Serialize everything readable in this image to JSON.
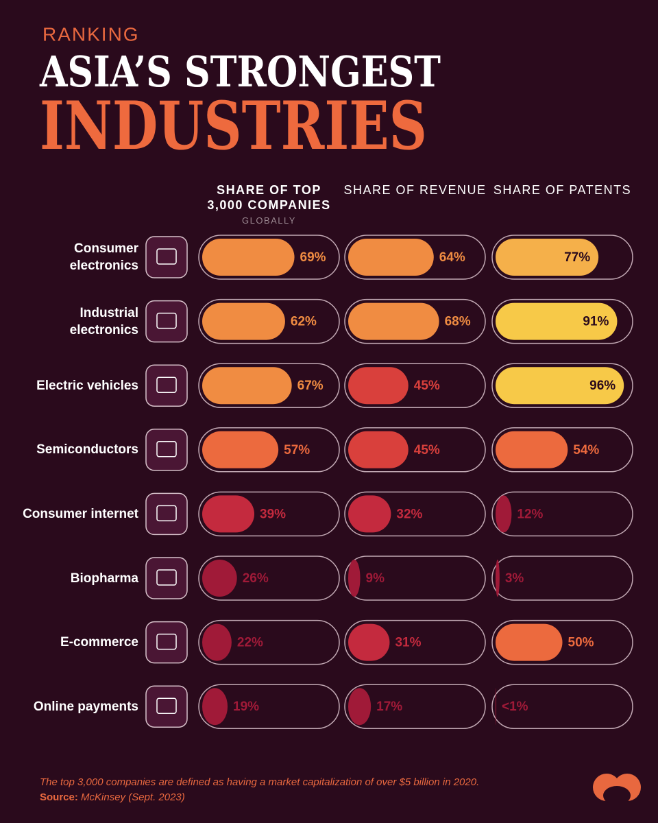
{
  "chart_data": {
    "type": "pill-bar",
    "kicker": "RANKING",
    "title": "ASIA’S STRONGEST",
    "title_highlight": "INDUSTRIES",
    "categories": [
      "Consumer electronics",
      "Industrial electronics",
      "Electric vehicles",
      "Semiconductors",
      "Consumer internet",
      "Biopharma",
      "E-commerce",
      "Online payments"
    ],
    "xlim": [
      0,
      100
    ],
    "series": [
      {
        "name": "SHARE OF TOP 3,000 COMPANIES",
        "note": "GLOBALLY",
        "values": [
          69,
          62,
          67,
          57,
          39,
          26,
          22,
          19
        ],
        "value_labels": [
          "69%",
          "62%",
          "67%",
          "57%",
          "39%",
          "26%",
          "22%",
          "19%"
        ],
        "colors": [
          "#f08c42",
          "#f08c42",
          "#f08c42",
          "#ec6a3e",
          "#c42a3e",
          "#a01a38",
          "#a01a38",
          "#a01a38"
        ]
      },
      {
        "name": "SHARE OF REVENUE",
        "values": [
          64,
          68,
          45,
          45,
          32,
          9,
          31,
          17
        ],
        "value_labels": [
          "64%",
          "68%",
          "45%",
          "45%",
          "32%",
          "9%",
          "31%",
          "17%"
        ],
        "colors": [
          "#f08c42",
          "#f08c42",
          "#d9403c",
          "#d9403c",
          "#c42a3e",
          "#a01a38",
          "#c42a3e",
          "#a01a38"
        ]
      },
      {
        "name": "SHARE OF PATENTS",
        "values": [
          77,
          91,
          96,
          54,
          12,
          3,
          50,
          0.5
        ],
        "value_labels": [
          "77%",
          "91%",
          "96%",
          "54%",
          "12%",
          "3%",
          "50%",
          "<1%"
        ],
        "colors": [
          "#f5b04a",
          "#f7c948",
          "#f7c948",
          "#ec6a3e",
          "#a01a38",
          "#a01a38",
          "#ec6a3e",
          "#a01a38"
        ]
      }
    ],
    "footnote": "The top 3,000 companies are defined as having a market capitalization of over $5 billion in 2020.",
    "source_label": "Source:",
    "source": "McKinsey (Sept. 2023)"
  }
}
